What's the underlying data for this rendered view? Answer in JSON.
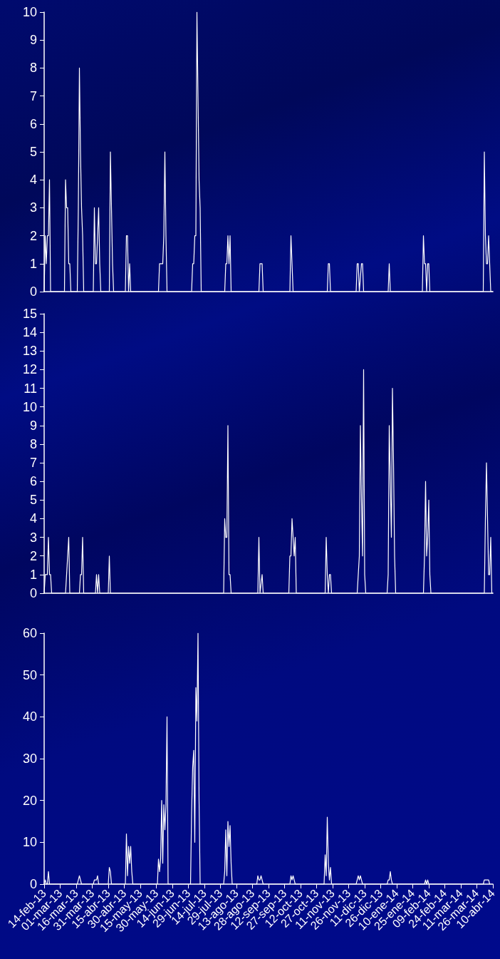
{
  "chart_data": [
    {
      "type": "line",
      "marker": "none",
      "line_style": "solid",
      "tick_labels": "y",
      "xlim": [
        "2013-02-14",
        "2014-04-10"
      ],
      "ylim": [
        0,
        10
      ],
      "yticks": [
        0,
        1,
        2,
        3,
        4,
        5,
        6,
        7,
        8,
        9,
        10
      ],
      "series": [
        {
          "color": "#ffffff",
          "x": [
            "2013-02-14",
            "2013-02-15",
            "2013-02-16",
            "2013-02-17",
            "2013-02-18",
            "2013-02-19",
            "2013-02-20",
            "2013-03-05",
            "2013-03-06",
            "2013-03-07",
            "2013-03-08",
            "2013-03-09",
            "2013-03-10",
            "2013-03-11",
            "2013-03-17",
            "2013-03-18",
            "2013-03-19",
            "2013-03-20",
            "2013-03-21",
            "2013-03-22",
            "2013-03-23",
            "2013-04-01",
            "2013-04-02",
            "2013-04-03",
            "2013-04-04",
            "2013-04-05",
            "2013-04-06",
            "2013-04-07",
            "2013-04-08",
            "2013-04-16",
            "2013-04-17",
            "2013-04-18",
            "2013-04-19",
            "2013-04-20",
            "2013-05-01",
            "2013-05-02",
            "2013-05-03",
            "2013-05-04",
            "2013-05-05",
            "2013-05-06",
            "2013-06-01",
            "2013-06-02",
            "2013-06-03",
            "2013-06-04",
            "2013-06-05",
            "2013-06-06",
            "2013-06-07",
            "2013-06-08",
            "2013-06-09",
            "2013-07-02",
            "2013-07-03",
            "2013-07-04",
            "2013-07-05",
            "2013-07-06",
            "2013-07-07",
            "2013-07-08",
            "2013-07-09",
            "2013-07-10",
            "2013-07-11",
            "2013-08-02",
            "2013-08-03",
            "2013-08-04",
            "2013-08-05",
            "2013-08-06",
            "2013-08-07",
            "2013-08-08",
            "2013-09-03",
            "2013-09-04",
            "2013-09-05",
            "2013-09-06",
            "2013-09-07",
            "2013-10-02",
            "2013-10-03",
            "2013-10-04",
            "2013-10-05",
            "2013-11-06",
            "2013-11-07",
            "2013-11-08",
            "2013-11-09",
            "2013-12-03",
            "2013-12-04",
            "2013-12-05",
            "2013-12-06",
            "2013-12-08",
            "2013-12-09",
            "2013-12-10",
            "2014-01-02",
            "2014-01-03",
            "2014-01-04",
            "2014-02-03",
            "2014-02-04",
            "2014-02-05",
            "2014-02-06",
            "2014-02-07",
            "2014-02-08",
            "2014-02-09",
            "2014-02-10",
            "2014-04-01",
            "2014-04-02",
            "2014-04-03",
            "2014-04-04",
            "2014-04-05",
            "2014-04-06",
            "2014-04-07",
            "2014-04-08",
            "2014-04-10"
          ],
          "values": [
            0,
            2,
            1,
            2,
            2,
            4,
            0,
            0,
            4,
            3,
            3,
            1,
            1,
            0,
            0,
            3,
            8,
            5,
            3,
            2,
            0,
            0,
            3,
            1,
            1,
            2,
            3,
            1,
            0,
            0,
            5,
            3,
            1,
            0,
            0,
            2,
            2,
            0,
            1,
            0,
            0,
            1,
            1,
            1,
            1,
            2,
            5,
            2,
            0,
            0,
            1,
            1,
            2,
            2,
            10,
            7,
            4,
            3,
            0,
            0,
            1,
            1,
            2,
            1,
            2,
            0,
            0,
            1,
            1,
            1,
            0,
            0,
            2,
            1,
            0,
            0,
            1,
            1,
            0,
            0,
            1,
            1,
            0,
            1,
            1,
            0,
            0,
            1,
            0,
            0,
            2,
            1,
            1,
            0,
            1,
            1,
            0,
            0,
            5,
            2,
            1,
            1,
            2,
            1,
            0,
            0
          ]
        }
      ]
    },
    {
      "type": "line",
      "marker": "none",
      "line_style": "solid",
      "tick_labels": "y",
      "xlim": [
        "2013-02-14",
        "2014-04-10"
      ],
      "ylim": [
        0,
        15
      ],
      "yticks": [
        0,
        1,
        2,
        3,
        4,
        5,
        6,
        7,
        8,
        9,
        10,
        11,
        12,
        13,
        14,
        15
      ],
      "series": [
        {
          "color": "#ffffff",
          "x": [
            "2013-02-14",
            "2013-02-15",
            "2013-02-16",
            "2013-02-17",
            "2013-02-18",
            "2013-02-19",
            "2013-02-20",
            "2013-02-21",
            "2013-03-06",
            "2013-03-07",
            "2013-03-08",
            "2013-03-09",
            "2013-03-10",
            "2013-03-19",
            "2013-03-20",
            "2013-03-21",
            "2013-03-22",
            "2013-03-23",
            "2013-04-03",
            "2013-04-04",
            "2013-04-05",
            "2013-04-06",
            "2013-04-07",
            "2013-04-15",
            "2013-04-16",
            "2013-04-17",
            "2013-08-01",
            "2013-08-02",
            "2013-08-03",
            "2013-08-04",
            "2013-08-05",
            "2013-08-06",
            "2013-08-07",
            "2013-08-08",
            "2013-09-02",
            "2013-09-03",
            "2013-09-04",
            "2013-09-06",
            "2013-09-07",
            "2013-10-01",
            "2013-10-02",
            "2013-10-03",
            "2013-10-04",
            "2013-10-05",
            "2013-10-06",
            "2013-10-07",
            "2013-10-08",
            "2013-11-04",
            "2013-11-05",
            "2013-11-06",
            "2013-11-07",
            "2013-11-08",
            "2013-11-09",
            "2013-11-10",
            "2013-12-04",
            "2013-12-05",
            "2013-12-06",
            "2013-12-07",
            "2013-12-08",
            "2013-12-09",
            "2013-12-10",
            "2013-12-11",
            "2013-12-12",
            "2014-01-01",
            "2014-01-02",
            "2014-01-03",
            "2014-01-04",
            "2014-01-05",
            "2014-01-06",
            "2014-01-07",
            "2014-01-08",
            "2014-01-09",
            "2014-02-04",
            "2014-02-05",
            "2014-02-06",
            "2014-02-07",
            "2014-02-08",
            "2014-02-09",
            "2014-02-10",
            "2014-02-11",
            "2014-04-02",
            "2014-04-03",
            "2014-04-04",
            "2014-04-05",
            "2014-04-06",
            "2014-04-07",
            "2014-04-08",
            "2014-04-09",
            "2014-04-10"
          ],
          "values": [
            0,
            1,
            1,
            1,
            3,
            1,
            1,
            0,
            0,
            1,
            2,
            3,
            0,
            0,
            1,
            1,
            3,
            0,
            0,
            1,
            0,
            1,
            0,
            0,
            2,
            0,
            0,
            4,
            3,
            3,
            9,
            1,
            1,
            0,
            0,
            3,
            0,
            1,
            0,
            0,
            2,
            2,
            4,
            3,
            2,
            3,
            0,
            0,
            3,
            1,
            0,
            1,
            1,
            0,
            0,
            1,
            2,
            9,
            5,
            2,
            12,
            1,
            0,
            0,
            1,
            9,
            6,
            3,
            11,
            7,
            2,
            0,
            0,
            2,
            6,
            2,
            3,
            5,
            1,
            0,
            0,
            4,
            7,
            4,
            1,
            1,
            3,
            0,
            0
          ]
        }
      ]
    },
    {
      "type": "line",
      "marker": "none",
      "line_style": "solid",
      "xlim": [
        "2013-02-14",
        "2014-04-10"
      ],
      "ylim": [
        0,
        60
      ],
      "yticks": [
        0,
        10,
        20,
        30,
        40,
        50,
        60
      ],
      "xticks": [
        {
          "value": "2013-02-14",
          "label": "14-feb-13"
        },
        {
          "value": "2013-03-01",
          "label": "01-mar-13"
        },
        {
          "value": "2013-03-16",
          "label": "16-mar-13"
        },
        {
          "value": "2013-03-31",
          "label": "31-mar-13"
        },
        {
          "value": "2013-04-15",
          "label": "15-abr-13"
        },
        {
          "value": "2013-04-30",
          "label": "30-abr-13"
        },
        {
          "value": "2013-05-15",
          "label": "15-may-13"
        },
        {
          "value": "2013-05-30",
          "label": "30-may-13"
        },
        {
          "value": "2013-06-14",
          "label": "14-jun-13"
        },
        {
          "value": "2013-06-29",
          "label": "29-jun-13"
        },
        {
          "value": "2013-07-14",
          "label": "14-jul-13"
        },
        {
          "value": "2013-07-29",
          "label": "29-jul-13"
        },
        {
          "value": "2013-08-13",
          "label": "13-ago-13"
        },
        {
          "value": "2013-08-28",
          "label": "28-ago-13"
        },
        {
          "value": "2013-09-12",
          "label": "12-sep-13"
        },
        {
          "value": "2013-09-27",
          "label": "27-sep-13"
        },
        {
          "value": "2013-10-12",
          "label": "12-oct-13"
        },
        {
          "value": "2013-10-27",
          "label": "27-oct-13"
        },
        {
          "value": "2013-11-11",
          "label": "11-nov-13"
        },
        {
          "value": "2013-11-26",
          "label": "26-nov-13"
        },
        {
          "value": "2013-12-11",
          "label": "11-dic-13"
        },
        {
          "value": "2013-12-26",
          "label": "26-dic-13"
        },
        {
          "value": "2014-01-10",
          "label": "10-ene-14"
        },
        {
          "value": "2014-01-25",
          "label": "25-ene-14"
        },
        {
          "value": "2014-02-09",
          "label": "09-feb-14"
        },
        {
          "value": "2014-02-24",
          "label": "24-feb-14"
        },
        {
          "value": "2014-03-11",
          "label": "11-mar-14"
        },
        {
          "value": "2014-03-26",
          "label": "26-mar-14"
        },
        {
          "value": "2014-04-10",
          "label": "10-abr-14"
        }
      ],
      "series": [
        {
          "color": "#ffffff",
          "x": [
            "2013-02-14",
            "2013-02-15",
            "2013-02-16",
            "2013-02-17",
            "2013-02-18",
            "2013-02-19",
            "2013-03-17",
            "2013-03-18",
            "2013-03-19",
            "2013-03-20",
            "2013-03-21",
            "2013-04-01",
            "2013-04-02",
            "2013-04-03",
            "2013-04-04",
            "2013-04-05",
            "2013-04-06",
            "2013-04-15",
            "2013-04-16",
            "2013-04-17",
            "2013-04-18",
            "2013-05-01",
            "2013-05-02",
            "2013-05-03",
            "2013-05-04",
            "2013-05-05",
            "2013-05-06",
            "2013-05-07",
            "2013-05-08",
            "2013-05-31",
            "2013-06-01",
            "2013-06-02",
            "2013-06-03",
            "2013-06-04",
            "2013-06-05",
            "2013-06-06",
            "2013-06-07",
            "2013-06-08",
            "2013-06-09",
            "2013-06-10",
            "2013-07-01",
            "2013-07-02",
            "2013-07-03",
            "2013-07-04",
            "2013-07-05",
            "2013-07-06",
            "2013-07-07",
            "2013-07-08",
            "2013-07-09",
            "2013-07-10",
            "2013-08-01",
            "2013-08-02",
            "2013-08-03",
            "2013-08-04",
            "2013-08-05",
            "2013-08-06",
            "2013-08-07",
            "2013-08-08",
            "2013-08-09",
            "2013-09-01",
            "2013-09-02",
            "2013-09-03",
            "2013-09-04",
            "2013-09-05",
            "2013-09-06",
            "2013-09-07",
            "2013-10-02",
            "2013-10-03",
            "2013-10-04",
            "2013-10-05",
            "2013-10-06",
            "2013-10-07",
            "2013-11-03",
            "2013-11-04",
            "2013-11-05",
            "2013-11-06",
            "2013-11-07",
            "2013-11-08",
            "2013-11-09",
            "2013-11-10",
            "2013-12-03",
            "2013-12-04",
            "2013-12-05",
            "2013-12-06",
            "2013-12-07",
            "2013-12-08",
            "2013-12-09",
            "2014-01-01",
            "2014-01-02",
            "2014-01-03",
            "2014-01-04",
            "2014-01-05",
            "2014-01-06",
            "2014-02-05",
            "2014-02-06",
            "2014-02-07",
            "2014-02-08",
            "2014-02-09",
            "2014-04-01",
            "2014-04-02",
            "2014-04-03",
            "2014-04-04",
            "2014-04-05",
            "2014-04-06",
            "2014-04-07"
          ],
          "values": [
            0,
            1,
            0,
            0,
            3,
            0,
            0,
            1,
            2,
            1,
            0,
            0,
            1,
            1,
            1,
            2,
            0,
            0,
            4,
            3,
            0,
            0,
            12,
            2,
            9,
            5,
            9,
            3,
            0,
            0,
            6,
            3,
            6,
            20,
            5,
            19,
            13,
            19,
            40,
            0,
            0,
            17,
            28,
            32,
            10,
            47,
            39,
            60,
            20,
            0,
            0,
            3,
            13,
            2,
            15,
            9,
            14,
            5,
            0,
            0,
            2,
            1,
            1,
            2,
            1,
            0,
            0,
            2,
            1,
            2,
            1,
            0,
            0,
            7,
            2,
            16,
            5,
            1,
            4,
            0,
            0,
            1,
            2,
            1,
            2,
            1,
            0,
            0,
            1,
            1,
            3,
            1,
            0,
            0,
            1,
            0,
            1,
            0,
            0,
            1,
            1,
            1,
            1,
            1,
            0
          ]
        }
      ]
    }
  ]
}
